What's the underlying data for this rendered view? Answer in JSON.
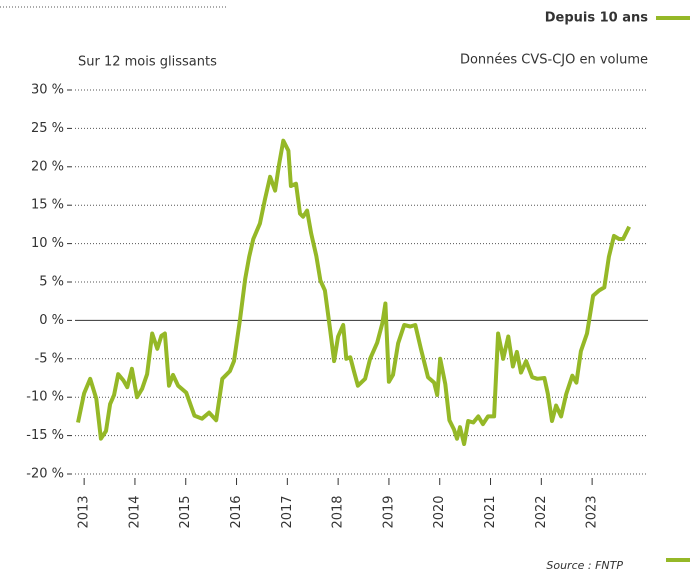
{
  "chart_data": {
    "type": "line",
    "header": "Depuis 10 ans",
    "subtitle": "Données CVS-CJO en volume",
    "y_axis_label": "Sur 12 mois glissants",
    "source": "Source : FNTP",
    "grid": true,
    "color": "#95b827",
    "xlim": [
      2012.82,
      2024.1
    ],
    "xticks": [
      2013,
      2014,
      2015,
      2016,
      2017,
      2018,
      2019,
      2020,
      2021,
      2022,
      2023
    ],
    "ylim": [
      -20,
      30
    ],
    "yticks": [
      {
        "value": -20,
        "label": "-20 %"
      },
      {
        "value": -15,
        "label": "-15 %"
      },
      {
        "value": -10,
        "label": "-10 %"
      },
      {
        "value": -5,
        "label": "-5 %"
      },
      {
        "value": 0,
        "label": "0 %"
      },
      {
        "value": 5,
        "label": "5 %"
      },
      {
        "value": 10,
        "label": "10 %"
      },
      {
        "value": 15,
        "label": "15 %"
      },
      {
        "value": 20,
        "label": "20 %"
      },
      {
        "value": 25,
        "label": "25 %"
      },
      {
        "value": 30,
        "label": "30 %"
      }
    ],
    "x": [
      2012.88,
      2013.0,
      2013.12,
      2013.24,
      2013.33,
      2013.43,
      2013.51,
      2013.59,
      2013.67,
      2013.77,
      2013.85,
      2013.94,
      2014.04,
      2014.14,
      2014.24,
      2014.34,
      2014.44,
      2014.52,
      2014.59,
      2014.67,
      2014.75,
      2014.85,
      2015.01,
      2015.17,
      2015.32,
      2015.46,
      2015.6,
      2015.72,
      2015.87,
      2015.95,
      2016.07,
      2016.17,
      2016.25,
      2016.33,
      2016.46,
      2016.56,
      2016.66,
      2016.76,
      2016.84,
      2016.92,
      2017.02,
      2017.07,
      2017.17,
      2017.25,
      2017.31,
      2017.39,
      2017.47,
      2017.57,
      2017.65,
      2017.74,
      2017.84,
      2017.92,
      2018.0,
      2018.1,
      2018.16,
      2018.24,
      2018.31,
      2018.39,
      2018.53,
      2018.63,
      2018.77,
      2018.87,
      2018.93,
      2019.0,
      2019.08,
      2019.18,
      2019.3,
      2019.42,
      2019.52,
      2019.63,
      2019.77,
      2019.89,
      2019.95,
      2020.01,
      2020.11,
      2020.19,
      2020.28,
      2020.34,
      2020.4,
      2020.48,
      2020.56,
      2020.66,
      2020.76,
      2020.85,
      2020.95,
      2021.07,
      2021.15,
      2021.25,
      2021.35,
      2021.44,
      2021.52,
      2021.6,
      2021.7,
      2021.82,
      2021.92,
      2022.06,
      2022.13,
      2022.21,
      2022.29,
      2022.39,
      2022.49,
      2022.61,
      2022.69,
      2022.78,
      2022.9,
      2023.02,
      2023.14,
      2023.24,
      2023.33,
      2023.43,
      2023.53,
      2023.61,
      2023.73
    ],
    "values": [
      -13.3,
      -9.5,
      -7.6,
      -10.2,
      -15.4,
      -14.4,
      -10.9,
      -9.7,
      -7.0,
      -7.8,
      -8.7,
      -6.3,
      -10.0,
      -8.9,
      -7.0,
      -1.7,
      -3.7,
      -2.0,
      -1.7,
      -8.5,
      -7.1,
      -8.5,
      -9.4,
      -12.4,
      -12.8,
      -12.0,
      -13.0,
      -7.6,
      -6.6,
      -5.3,
      0.2,
      5.4,
      8.3,
      10.6,
      12.6,
      15.8,
      18.7,
      16.9,
      20.4,
      23.4,
      22.1,
      17.5,
      17.8,
      13.9,
      13.5,
      14.3,
      11.3,
      8.4,
      5.2,
      3.9,
      -1.1,
      -5.3,
      -2.1,
      -0.6,
      -5.0,
      -4.8,
      -6.6,
      -8.5,
      -7.6,
      -5.0,
      -2.9,
      -0.4,
      2.2,
      -8.0,
      -7.1,
      -3.0,
      -0.6,
      -0.8,
      -0.6,
      -3.7,
      -7.4,
      -8.1,
      -9.7,
      -5.0,
      -8.3,
      -13.0,
      -14.2,
      -15.4,
      -13.9,
      -16.1,
      -13.1,
      -13.3,
      -12.5,
      -13.5,
      -12.5,
      -12.5,
      -1.7,
      -5.0,
      -2.1,
      -6.0,
      -4.1,
      -6.8,
      -5.3,
      -7.4,
      -7.6,
      -7.5,
      -9.6,
      -13.1,
      -11.1,
      -12.5,
      -9.6,
      -7.2,
      -8.1,
      -4.0,
      -1.7,
      3.2,
      3.9,
      4.3,
      8.3,
      11.0,
      10.6,
      10.6,
      12.2
    ]
  }
}
